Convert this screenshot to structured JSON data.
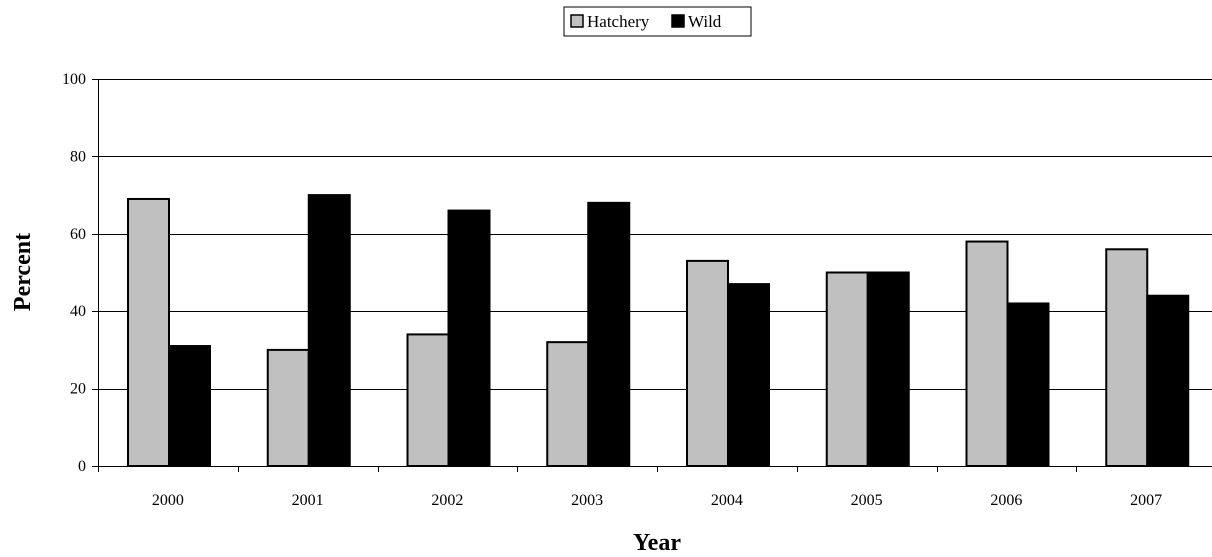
{
  "chart_data": {
    "type": "bar",
    "title": "",
    "xlabel": "Year",
    "ylabel": "Percent",
    "categories": [
      "2000",
      "2001",
      "2002",
      "2003",
      "2004",
      "2005",
      "2006",
      "2007"
    ],
    "series": [
      {
        "name": "Hatchery",
        "color": "#c0c0c0",
        "values": [
          69,
          30,
          34,
          32,
          53,
          50,
          58,
          56
        ]
      },
      {
        "name": "Wild",
        "color": "#000000",
        "values": [
          31,
          70,
          66,
          68,
          47,
          50,
          42,
          44
        ]
      }
    ],
    "ylim": [
      0,
      100
    ],
    "yticks": [
      0,
      20,
      40,
      60,
      80,
      100
    ],
    "grid": true,
    "legend_position": "top-center"
  }
}
